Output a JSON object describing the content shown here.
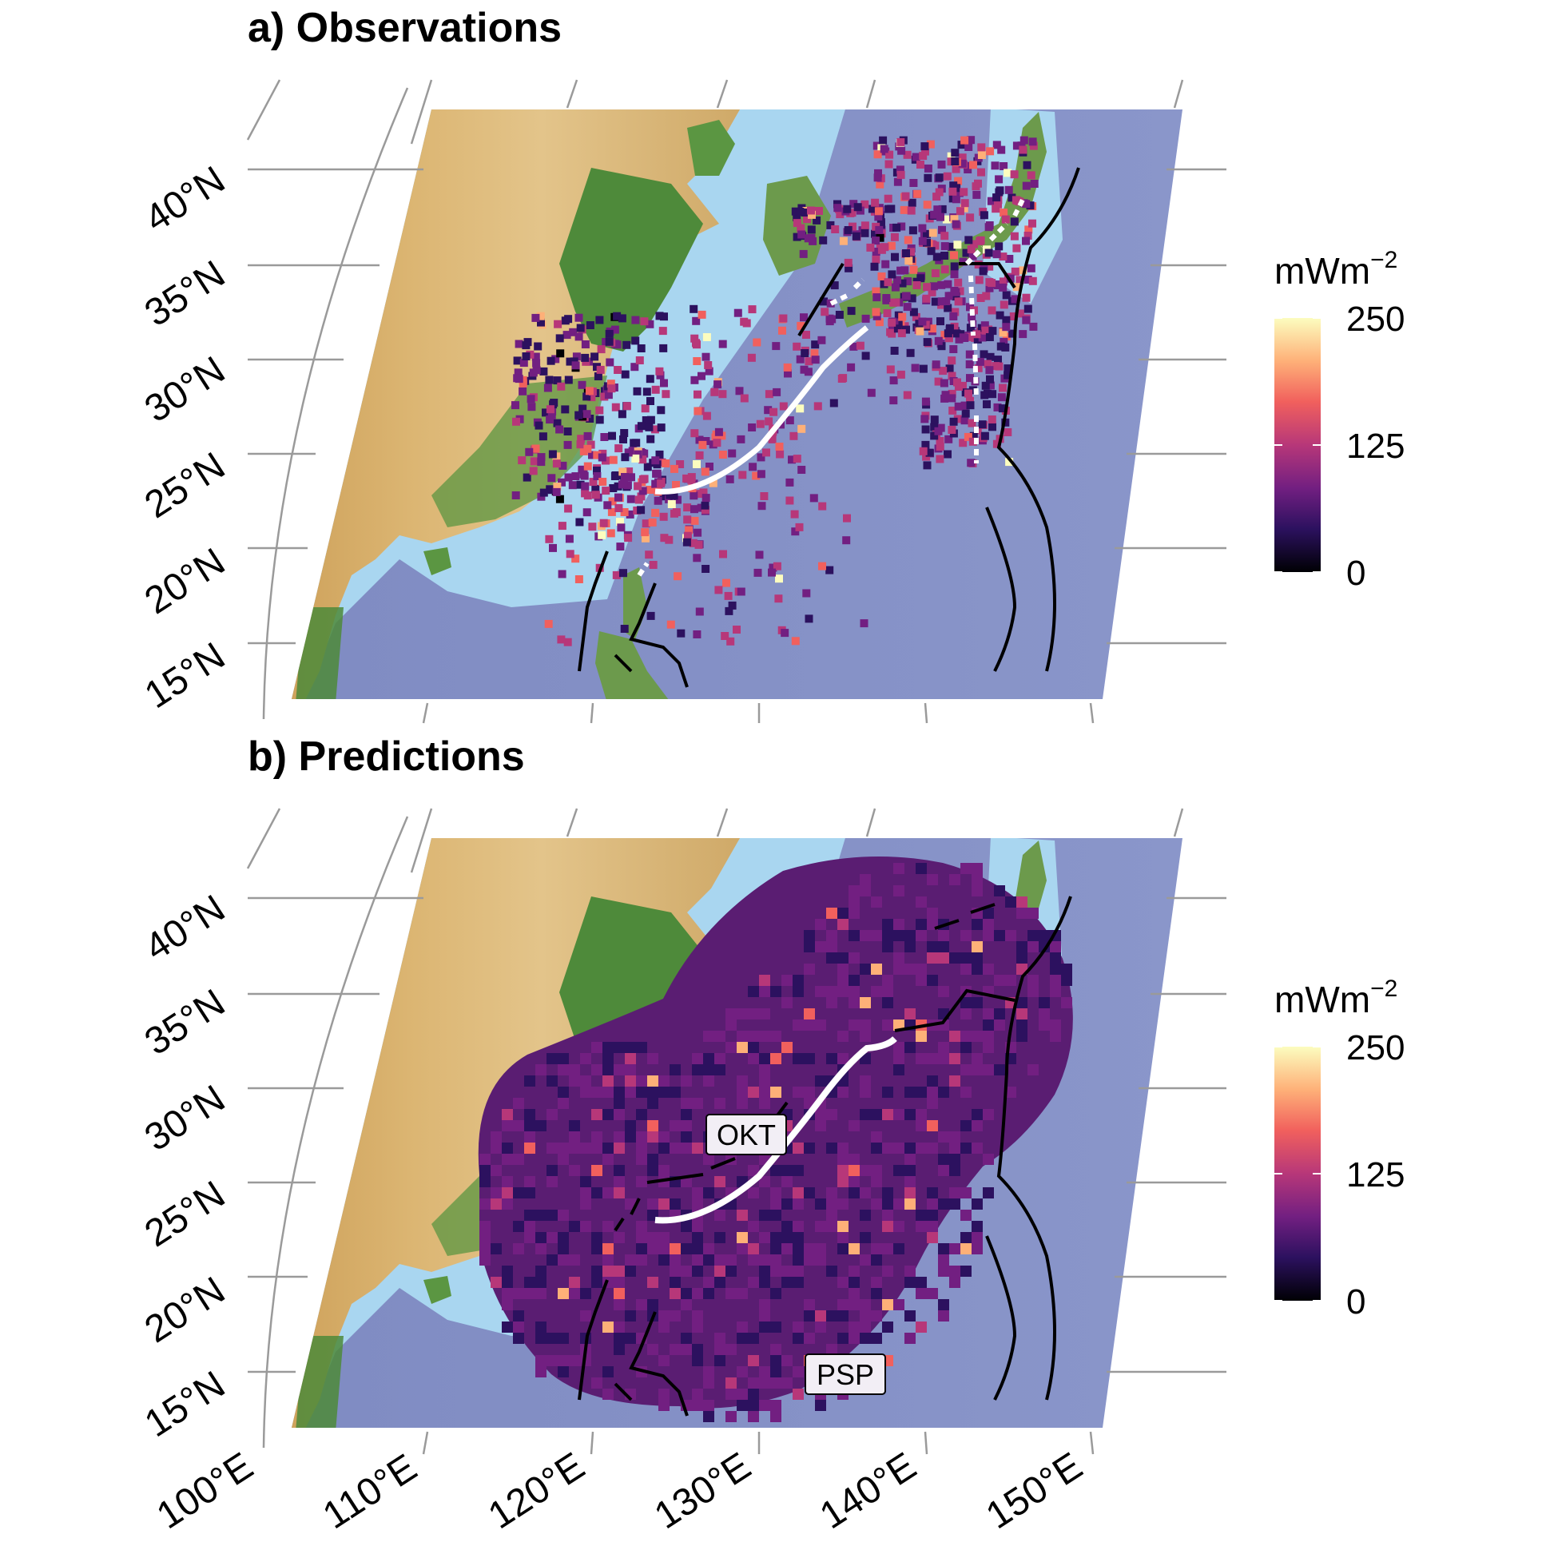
{
  "panels": [
    {
      "id": "a",
      "title": "a) Observations",
      "lat_labels": [
        "40°N",
        "35°N",
        "30°N",
        "25°N",
        "20°N",
        "15°N"
      ],
      "legend": {
        "title": "mWm",
        "title_sup": "−2",
        "ticks": [
          "250",
          "125",
          "0"
        ]
      }
    },
    {
      "id": "b",
      "title": "b) Predictions",
      "lat_labels": [
        "40°N",
        "35°N",
        "30°N",
        "25°N",
        "20°N",
        "15°N"
      ],
      "lon_labels": [
        "100°E",
        "110°E",
        "120°E",
        "130°E",
        "140°E",
        "150°E"
      ],
      "legend": {
        "title": "mWm",
        "title_sup": "−2",
        "ticks": [
          "250",
          "125",
          "0"
        ]
      },
      "plate_labels": [
        "OKT",
        "PSP"
      ]
    }
  ],
  "colorscale": {
    "name": "magma",
    "stops": [
      "#000004",
      "#2c115f",
      "#721f81",
      "#b73779",
      "#f1605d",
      "#feb078",
      "#fcfdbf"
    ],
    "range": [
      0,
      250
    ]
  },
  "colors": {
    "land_low": "#4e8a3a",
    "land_high": "#d9b06a",
    "shelf": "#a9d6f0",
    "ocean": "#8894c6",
    "graticule": "#9a9a9a",
    "trench": "#000000",
    "ridge": "#ffffff"
  }
}
